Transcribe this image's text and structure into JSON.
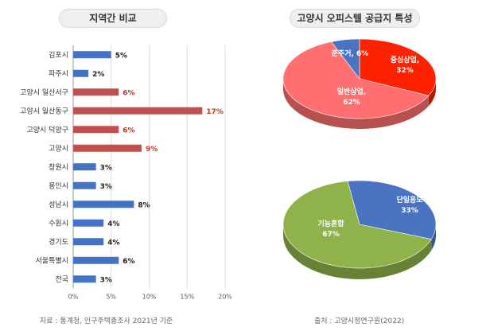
{
  "left_panel": {
    "title": "지역간 비교",
    "source": "자료 : 통계청, 인구주택총조사 2021년 기준"
  },
  "right_panel": {
    "title": "고양시 오피스텔 공급지 특성",
    "source": "출처 : 고양시정연구원(2022)"
  },
  "colors": {
    "bar_default": "#4472c4",
    "bar_highlight": "#c0504d",
    "label_default": "#222222",
    "label_highlight": "#c0392b",
    "pie1": [
      "#ff2200",
      "#ff6f6f",
      "#4a74c2"
    ],
    "pie2": [
      "#4a74c2",
      "#8fb34a"
    ]
  },
  "chart_data": [
    {
      "type": "bar",
      "orientation": "horizontal",
      "categories": [
        "김포시",
        "파주시",
        "고양시 일산서구",
        "고양시 일산동구",
        "고양시 덕양구",
        "고양시",
        "창원시",
        "용인시",
        "성남시",
        "수원시",
        "경기도",
        "서울특별시",
        "전국"
      ],
      "values": [
        5,
        2,
        6,
        17,
        6,
        9,
        3,
        3,
        8,
        4,
        4,
        6,
        3
      ],
      "data_labels": [
        "5%",
        "2%",
        "6%",
        "17%",
        "6%",
        "9%",
        "3%",
        "3%",
        "8%",
        "4%",
        "4%",
        "6%",
        "3%"
      ],
      "highlighted": [
        false,
        false,
        true,
        true,
        true,
        true,
        false,
        false,
        false,
        false,
        false,
        false,
        false
      ],
      "xticks": [
        "0%",
        "5%",
        "10%",
        "15%",
        "20%"
      ],
      "xlim": [
        0,
        20
      ],
      "grid": true
    },
    {
      "type": "pie",
      "labels": [
        "중심상업",
        "일반상업",
        "준주거"
      ],
      "values": [
        32,
        62,
        6
      ],
      "data_labels": [
        "중심상업,\n32%",
        "일반상업,\n62%",
        "준주거, 6%"
      ],
      "style": "3d"
    },
    {
      "type": "pie",
      "labels": [
        "단일용도",
        "기능혼합"
      ],
      "values": [
        33,
        67
      ],
      "data_labels": [
        "단일용도\n33%",
        "기능혼합\n67%"
      ],
      "style": "3d"
    }
  ]
}
